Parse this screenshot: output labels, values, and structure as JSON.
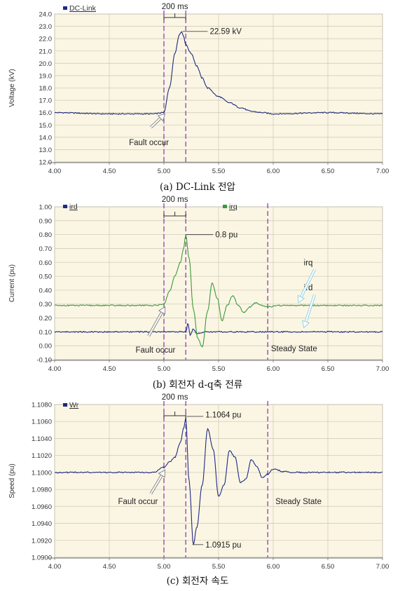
{
  "chart_data": [
    {
      "type": "line",
      "caption": "(a) DC-Link 전압",
      "ylabel": "Voltage (kV)",
      "xlabel": "",
      "xlim": [
        4.0,
        7.0
      ],
      "ylim": [
        12.0,
        24.0
      ],
      "xticks": [
        "4.00",
        "4.50",
        "5.00",
        "5.50",
        "6.00",
        "6.50",
        "7.00"
      ],
      "yticks": [
        "12.0",
        "13.0",
        "14.0",
        "15.0",
        "16.0",
        "17.0",
        "18.0",
        "19.0",
        "20.0",
        "21.0",
        "22.0",
        "23.0",
        "24.0"
      ],
      "series": [
        {
          "name": "DC-Link",
          "color": "#1f2a80",
          "x": [
            4.0,
            4.5,
            4.9,
            5.0,
            5.05,
            5.1,
            5.14,
            5.16,
            5.18,
            5.2,
            5.25,
            5.3,
            5.35,
            5.4,
            5.5,
            5.6,
            5.7,
            5.8,
            5.9,
            6.0,
            6.5,
            7.0
          ],
          "y": [
            16.0,
            15.9,
            15.9,
            16.0,
            18.0,
            20.8,
            22.3,
            22.59,
            22.2,
            21.5,
            20.8,
            19.8,
            18.8,
            18.0,
            17.3,
            16.8,
            16.4,
            16.1,
            16.0,
            15.9,
            16.0,
            15.9
          ]
        }
      ],
      "vlines": [
        5.0,
        5.2
      ],
      "bracket_label": "200 ms",
      "annotations": [
        {
          "text": "22.59 kV"
        },
        {
          "text": "Fault occur"
        }
      ]
    },
    {
      "type": "line",
      "caption": "(b) 회전자 d-q축 전류",
      "ylabel": "Current (pu)",
      "xlabel": "",
      "xlim": [
        4.0,
        7.0
      ],
      "ylim": [
        -0.1,
        1.0
      ],
      "xticks": [
        "4.00",
        "4.50",
        "5.00",
        "5.50",
        "6.00",
        "6.50",
        "7.00"
      ],
      "yticks": [
        "-0.10",
        "0.00",
        "0.10",
        "0.20",
        "0.30",
        "0.40",
        "0.50",
        "0.60",
        "0.70",
        "0.80",
        "0.90",
        "1.00"
      ],
      "series": [
        {
          "name": "ird",
          "color": "#1f2a80",
          "x": [
            4.0,
            4.5,
            5.0,
            5.15,
            5.2,
            5.22,
            5.24,
            5.27,
            5.3,
            5.4,
            5.5,
            6.0,
            7.0
          ],
          "y": [
            0.1,
            0.1,
            0.1,
            0.1,
            0.1,
            0.16,
            0.08,
            0.12,
            0.09,
            0.1,
            0.1,
            0.1,
            0.1
          ]
        },
        {
          "name": "irq",
          "color": "#3a9a3a",
          "x": [
            4.0,
            4.5,
            4.9,
            5.0,
            5.05,
            5.1,
            5.15,
            5.18,
            5.2,
            5.23,
            5.27,
            5.31,
            5.35,
            5.4,
            5.44,
            5.49,
            5.53,
            5.58,
            5.63,
            5.68,
            5.73,
            5.79,
            5.84,
            5.9,
            5.95,
            6.05,
            6.2,
            6.5,
            7.0
          ],
          "y": [
            0.29,
            0.29,
            0.29,
            0.3,
            0.39,
            0.5,
            0.6,
            0.7,
            0.8,
            0.63,
            0.26,
            0.05,
            -0.01,
            0.25,
            0.45,
            0.34,
            0.18,
            0.29,
            0.36,
            0.29,
            0.24,
            0.28,
            0.31,
            0.29,
            0.28,
            0.29,
            0.29,
            0.29,
            0.29
          ]
        }
      ],
      "vlines": [
        5.0,
        5.2,
        5.95
      ],
      "bracket_label": "200 ms",
      "annotations": [
        {
          "text": "0.8 pu"
        },
        {
          "text": "Fault occur"
        },
        {
          "text": "Steady State"
        },
        {
          "text": "irq"
        },
        {
          "text": "ird"
        }
      ]
    },
    {
      "type": "line",
      "caption": "(c) 회전자 속도",
      "ylabel": "Speed (pu)",
      "xlabel": "",
      "xlim": [
        4.0,
        7.0
      ],
      "ylim": [
        1.09,
        1.108
      ],
      "xticks": [
        "4.00",
        "4.50",
        "5.00",
        "5.50",
        "6.00",
        "6.50",
        "7.00"
      ],
      "yticks": [
        "1.0900",
        "1.0920",
        "1.0940",
        "1.0960",
        "1.0980",
        "1.1000",
        "1.1020",
        "1.1040",
        "1.1060",
        "1.1080"
      ],
      "series": [
        {
          "name": "Wr",
          "color": "#1f2a80",
          "x": [
            4.0,
            4.5,
            4.9,
            5.0,
            5.05,
            5.1,
            5.15,
            5.18,
            5.2,
            5.23,
            5.27,
            5.3,
            5.35,
            5.4,
            5.45,
            5.5,
            5.55,
            5.6,
            5.65,
            5.7,
            5.75,
            5.8,
            5.85,
            5.9,
            5.95,
            6.0,
            6.1,
            6.2,
            7.0
          ],
          "y": [
            1.1,
            1.1,
            1.1,
            1.1006,
            1.1012,
            1.1018,
            1.1035,
            1.1052,
            1.1064,
            1.099,
            1.0915,
            1.0935,
            1.0985,
            1.1052,
            1.1028,
            1.0972,
            1.0985,
            1.1026,
            1.1018,
            1.0988,
            1.0992,
            1.1015,
            1.1007,
            1.0994,
            1.0998,
            1.1004,
            1.1001,
            1.1,
            1.1
          ]
        }
      ],
      "vlines": [
        5.0,
        5.2,
        5.95
      ],
      "bracket_label": "200 ms",
      "annotations": [
        {
          "text": "1.1064 pu"
        },
        {
          "text": "1.0915 pu"
        },
        {
          "text": "Fault occur"
        },
        {
          "text": "Steady State"
        }
      ]
    }
  ]
}
